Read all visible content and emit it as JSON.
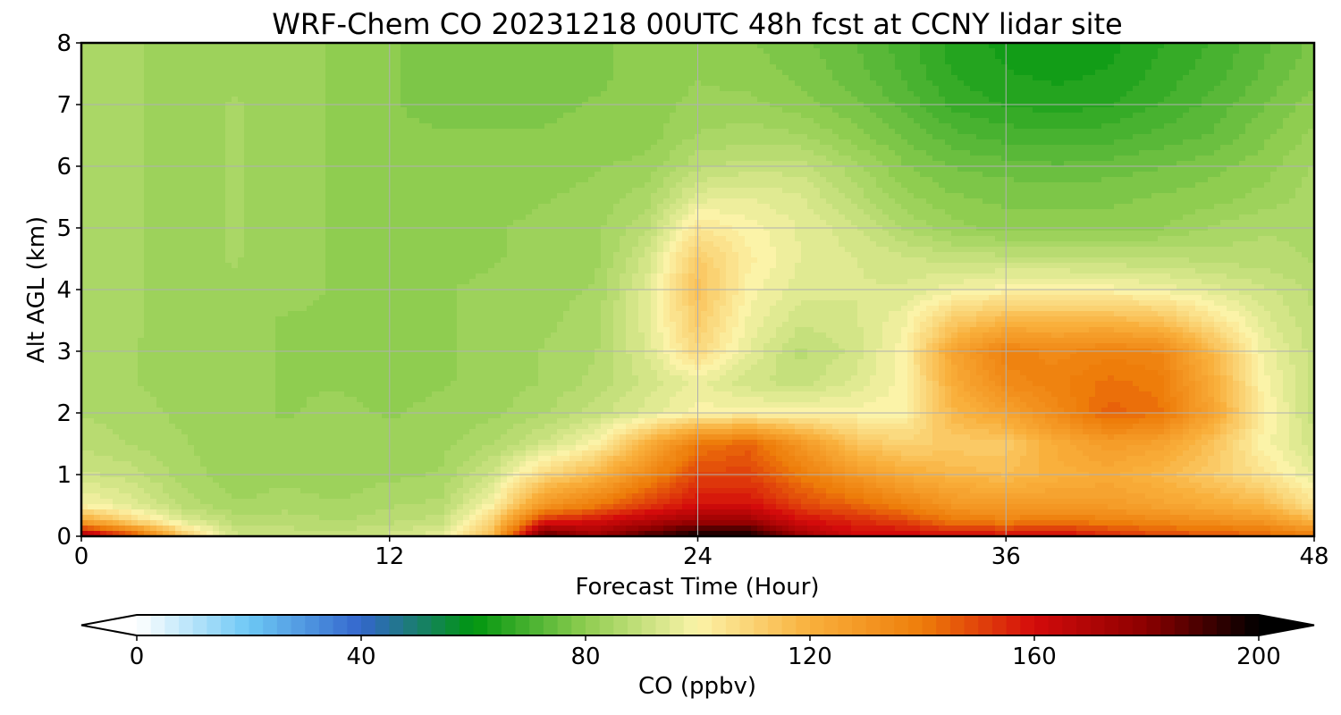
{
  "chart_data": {
    "type": "heatmap",
    "title": "WRF-Chem CO  20231218 00UTC 48h fcst at CCNY lidar site",
    "xlabel": "Forecast Time (Hour)",
    "ylabel": "Alt AGL (km)",
    "xlim": [
      0,
      48
    ],
    "ylim": [
      0,
      8
    ],
    "xticks": [
      "0",
      "12",
      "24",
      "36",
      "48"
    ],
    "yticks": [
      "0",
      "1",
      "2",
      "3",
      "4",
      "5",
      "6",
      "7",
      "8"
    ],
    "grid": true,
    "colorbar": {
      "label": "CO  (ppbv)",
      "min": 0,
      "max": 200,
      "ticks": [
        "0",
        "40",
        "80",
        "120",
        "160",
        "200"
      ],
      "extend": "both",
      "orientation": "horizontal",
      "colors": [
        "#ffffff",
        "#6dc8f5",
        "#3366cc",
        "#00960f",
        "#8fcd50",
        "#fbf3a8",
        "#f9b03c",
        "#ee7d0a",
        "#d40b0b",
        "#8b0000",
        "#000000"
      ]
    },
    "x": [
      0,
      2,
      4,
      6,
      8,
      10,
      12,
      14,
      16,
      18,
      20,
      22,
      24,
      26,
      28,
      30,
      32,
      34,
      36,
      38,
      40,
      42,
      44,
      46,
      48
    ],
    "y": [
      0,
      0.25,
      0.5,
      1,
      1.5,
      2,
      2.5,
      3,
      3.5,
      4,
      4.5,
      5,
      5.5,
      6,
      6.5,
      7,
      7.5,
      8
    ],
    "z": [
      [
        175,
        150,
        112,
        92,
        90,
        90,
        92,
        96,
        118,
        190,
        175,
        190,
        200,
        200,
        175,
        162,
        162,
        160,
        160,
        162,
        155,
        150,
        148,
        145,
        140
      ],
      [
        125,
        108,
        95,
        88,
        88,
        86,
        88,
        90,
        110,
        155,
        160,
        168,
        175,
        175,
        160,
        155,
        150,
        140,
        138,
        140,
        138,
        135,
        132,
        130,
        118
      ],
      [
        100,
        95,
        88,
        84,
        85,
        84,
        86,
        87,
        100,
        130,
        140,
        152,
        160,
        160,
        150,
        145,
        138,
        130,
        128,
        128,
        128,
        125,
        122,
        118,
        105
      ],
      [
        92,
        90,
        85,
        82,
        83,
        82,
        83,
        84,
        92,
        108,
        118,
        135,
        150,
        150,
        140,
        130,
        122,
        118,
        116,
        120,
        122,
        118,
        112,
        105,
        96
      ],
      [
        88,
        86,
        84,
        82,
        82,
        82,
        82,
        83,
        86,
        92,
        100,
        120,
        140,
        145,
        130,
        115,
        110,
        112,
        112,
        122,
        128,
        125,
        115,
        100,
        92
      ],
      [
        86,
        85,
        83,
        82,
        81,
        82,
        81,
        82,
        83,
        86,
        90,
        95,
        100,
        100,
        100,
        100,
        100,
        118,
        125,
        135,
        145,
        142,
        125,
        102,
        90
      ],
      [
        85,
        84,
        82,
        82,
        81,
        81,
        80,
        81,
        82,
        84,
        87,
        92,
        97,
        92,
        90,
        94,
        100,
        122,
        135,
        138,
        142,
        140,
        122,
        100,
        90
      ],
      [
        84,
        84,
        82,
        82,
        81,
        81,
        80,
        81,
        82,
        84,
        86,
        94,
        108,
        96,
        88,
        92,
        100,
        125,
        138,
        135,
        138,
        136,
        118,
        98,
        90
      ],
      [
        84,
        84,
        83,
        82,
        81,
        81,
        80,
        81,
        82,
        83,
        85,
        95,
        112,
        98,
        92,
        93,
        98,
        112,
        118,
        118,
        118,
        115,
        105,
        95,
        89
      ],
      [
        84,
        84,
        83,
        83,
        82,
        81,
        80,
        81,
        82,
        83,
        84,
        95,
        115,
        100,
        95,
        94,
        94,
        98,
        100,
        100,
        100,
        98,
        95,
        92,
        88
      ],
      [
        84,
        84,
        83,
        84,
        82,
        81,
        79,
        80,
        81,
        82,
        83,
        92,
        112,
        102,
        96,
        94,
        92,
        90,
        90,
        90,
        89,
        89,
        88,
        87,
        86
      ],
      [
        84,
        84,
        83,
        84,
        82,
        81,
        79,
        80,
        81,
        82,
        83,
        88,
        104,
        100,
        96,
        92,
        86,
        82,
        80,
        80,
        80,
        81,
        84,
        86,
        86
      ],
      [
        84,
        84,
        83,
        84,
        82,
        81,
        79,
        79,
        80,
        81,
        82,
        85,
        95,
        96,
        94,
        88,
        82,
        79,
        78,
        78,
        78,
        79,
        80,
        82,
        85
      ],
      [
        84,
        84,
        83,
        84,
        82,
        81,
        79,
        79,
        79,
        80,
        81,
        82,
        88,
        90,
        90,
        85,
        79,
        76,
        75,
        74,
        75,
        76,
        78,
        80,
        84
      ],
      [
        84,
        84,
        83,
        84,
        82,
        81,
        79,
        79,
        79,
        79,
        80,
        80,
        84,
        85,
        84,
        80,
        76,
        72,
        70,
        70,
        70,
        72,
        74,
        78,
        82
      ],
      [
        84,
        84,
        83,
        84,
        82,
        81,
        79,
        78,
        78,
        78,
        79,
        80,
        82,
        82,
        80,
        77,
        73,
        68,
        66,
        65,
        66,
        69,
        72,
        76,
        80
      ],
      [
        84,
        84,
        83,
        83,
        82,
        81,
        79,
        78,
        78,
        78,
        78,
        80,
        81,
        80,
        78,
        75,
        71,
        66,
        64,
        63,
        64,
        67,
        70,
        74,
        78
      ],
      [
        84,
        84,
        83,
        83,
        82,
        81,
        79,
        78,
        78,
        78,
        78,
        80,
        80,
        79,
        77,
        74,
        70,
        65,
        63,
        62,
        63,
        66,
        69,
        73,
        77
      ]
    ]
  }
}
